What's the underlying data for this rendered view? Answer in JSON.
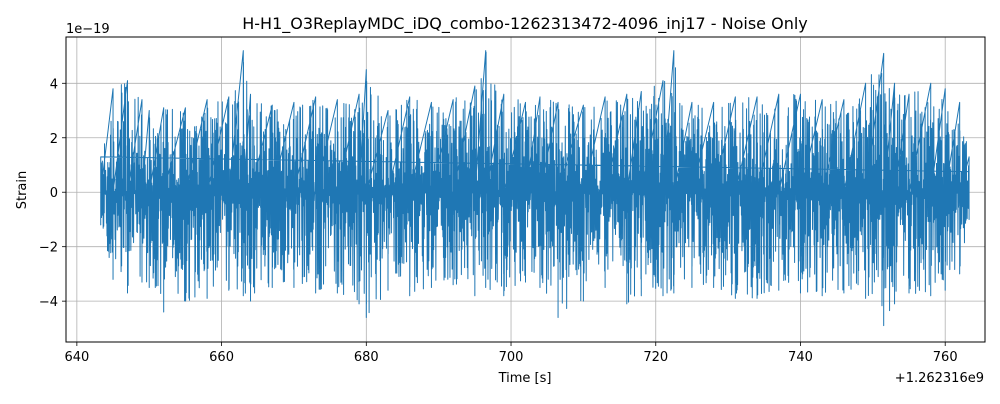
{
  "chart_data": {
    "type": "line",
    "title": "H-H1_O3ReplayMDC_iDQ_combo-1262313472-4096_inj17 - Noise Only",
    "xlabel": "Time [s]",
    "ylabel": "Strain",
    "x_offset_label": "+1.262316e9",
    "y_scale_label": "1e−19",
    "xlim": [
      638.5,
      765.5
    ],
    "ylim": [
      -5.5,
      5.7
    ],
    "x_ticks": [
      640,
      660,
      680,
      700,
      720,
      740,
      760
    ],
    "x_tick_labels": [
      "640",
      "660",
      "680",
      "700",
      "720",
      "740",
      "760"
    ],
    "y_ticks": [
      -4,
      -2,
      0,
      2,
      4
    ],
    "y_tick_labels": [
      "−4",
      "−2",
      "0",
      "2",
      "4"
    ],
    "grid": true,
    "line_color": "#1f77b4",
    "series": [
      {
        "x_start": 643.3,
        "x_end": 763.3,
        "envelope": {
          "x": [
            643.3,
            645.0,
            647.0,
            649.0,
            650.0,
            652.0,
            655.0,
            658.0,
            661.0,
            663.0,
            664.0,
            667.0,
            670.0,
            673.0,
            676.0,
            679.0,
            680.0,
            683.0,
            686.0,
            689.0,
            692.0,
            695.0,
            696.5,
            699.0,
            702.0,
            704.0,
            706.5,
            710.0,
            713.0,
            716.0,
            718.0,
            721.0,
            722.5,
            725.0,
            728.0,
            731.0,
            734.0,
            737.0,
            740.0,
            743.0,
            746.0,
            749.0,
            751.5,
            753.0,
            755.0,
            758.0,
            760.0,
            762.0,
            763.3
          ],
          "upper": [
            1.3,
            3.8,
            4.1,
            3.4,
            3.0,
            3.1,
            3.1,
            3.4,
            3.5,
            5.2,
            3.6,
            3.2,
            3.3,
            3.5,
            3.4,
            3.6,
            4.5,
            3.0,
            3.5,
            3.3,
            3.4,
            3.9,
            5.2,
            3.6,
            3.3,
            3.5,
            3.3,
            3.2,
            3.5,
            3.6,
            3.7,
            4.1,
            5.2,
            3.3,
            3.3,
            3.5,
            3.5,
            3.6,
            3.6,
            3.4,
            3.4,
            4.0,
            5.1,
            4.0,
            3.6,
            4.0,
            3.8,
            3.3,
            1.3
          ],
          "lower": [
            -1.2,
            -3.2,
            -3.7,
            -3.3,
            -3.5,
            -4.4,
            -4.0,
            -3.9,
            -3.6,
            -3.8,
            -4.0,
            -3.5,
            -3.5,
            -3.7,
            -3.7,
            -4.1,
            -4.6,
            -3.6,
            -3.8,
            -3.5,
            -3.4,
            -3.8,
            -3.5,
            -3.8,
            -3.3,
            -3.5,
            -4.6,
            -4.0,
            -3.5,
            -4.1,
            -3.8,
            -3.8,
            -3.7,
            -3.5,
            -3.5,
            -3.9,
            -3.9,
            -3.6,
            -3.7,
            -3.8,
            -3.7,
            -3.9,
            -4.9,
            -4.1,
            -3.7,
            -3.8,
            -3.6,
            -3.0,
            -1.0
          ]
        }
      }
    ]
  }
}
